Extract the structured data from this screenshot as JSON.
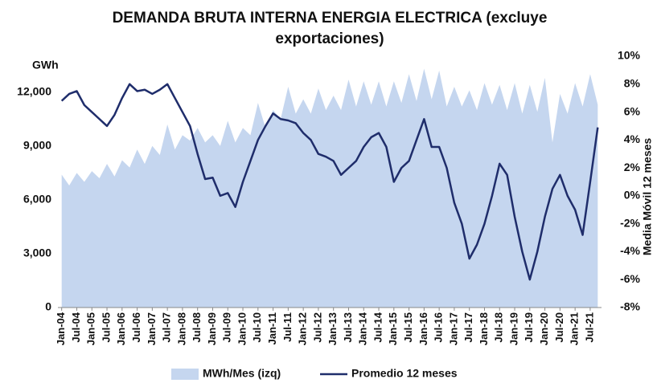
{
  "chart_data": {
    "type": "area_line",
    "title": "DEMANDA BRUTA INTERNA ENERGIA ELECTRICA (excluye exportaciones)",
    "ylabel": "GWh",
    "y2label": "Media Móvil 12 meses",
    "categories": [
      "Jan-04",
      null,
      "Jul-04",
      null,
      "Jan-05",
      null,
      "Jul-05",
      null,
      "Jan-06",
      null,
      "Jul-06",
      null,
      "Jan-07",
      null,
      "Jul-07",
      null,
      "Jan-08",
      null,
      "Jul-08",
      null,
      "Jan-09",
      null,
      "Jul-09",
      null,
      "Jan-10",
      null,
      "Jul-10",
      null,
      "Jan-11",
      null,
      "Jul-11",
      null,
      "Jan-12",
      null,
      "Jul-12",
      null,
      "Jan-13",
      null,
      "Jul-13",
      null,
      "Jan-14",
      null,
      "Jul-14",
      null,
      "Jan-15",
      null,
      "Jul-15",
      null,
      "Jan-16",
      null,
      "Jul-16",
      null,
      "Jan-17",
      null,
      "Jul-17",
      null,
      "Jan-18",
      null,
      "Jul-18",
      null,
      "Jan-19",
      null,
      "Jul-19",
      null,
      "Jan-20",
      null,
      "Jul-20",
      null,
      "Jan-21",
      null,
      "Jul-21",
      null
    ],
    "series": [
      {
        "name": "MWh/Mes (izq)",
        "color": "#c5d6ef",
        "values": [
          7400,
          6800,
          7500,
          7000,
          7600,
          7200,
          8000,
          7300,
          8200,
          7800,
          8800,
          8000,
          9000,
          8500,
          10200,
          8800,
          9600,
          9300,
          10000,
          9200,
          9600,
          9000,
          10400,
          9200,
          10000,
          9600,
          11400,
          10000,
          11000,
          10500,
          12300,
          10800,
          11600,
          10800,
          12200,
          11000,
          11800,
          11000,
          12700,
          11200,
          12600,
          11300,
          12600,
          11200,
          12600,
          11400,
          13000,
          11500,
          13300,
          11600,
          13200,
          11200,
          12300,
          11200,
          12100,
          11000,
          12500,
          11300,
          12400,
          11000,
          12500,
          10800,
          12400,
          10900,
          12800,
          9200,
          11900,
          10800,
          12500,
          11200,
          13000,
          11300
        ]
      },
      {
        "name": "Promedio 12 meses",
        "color": "#1f2d6b",
        "axis": "y2",
        "values": [
          6.8,
          7.3,
          7.5,
          6.5,
          6.0,
          5.5,
          5.0,
          5.8,
          7.0,
          8.0,
          7.5,
          7.6,
          7.3,
          7.6,
          8.0,
          7.0,
          6.0,
          5.0,
          3.0,
          1.2,
          1.3,
          0.0,
          0.2,
          -0.8,
          1.0,
          2.5,
          4.0,
          5.0,
          5.9,
          5.5,
          5.4,
          5.2,
          4.5,
          4.0,
          3.0,
          2.8,
          2.5,
          1.5,
          2.0,
          2.5,
          3.5,
          4.2,
          4.5,
          3.5,
          1.0,
          2.0,
          2.5,
          4.0,
          5.5,
          3.5,
          3.5,
          2.0,
          -0.5,
          -2.0,
          -4.5,
          -3.5,
          -2.0,
          0.0,
          2.3,
          1.5,
          -1.5,
          -4.0,
          -6.0,
          -4.0,
          -1.5,
          0.5,
          1.5,
          0.0,
          -1.0,
          -2.8,
          1.0,
          4.9
        ]
      }
    ],
    "ylim": [
      0,
      14000
    ],
    "yticks": [
      0,
      {
        "value": 3000,
        "label": "3,000"
      },
      {
        "value": 6000,
        "label": "6,000"
      },
      {
        "value": 9000,
        "label": "9,000"
      },
      {
        "value": 12000,
        "label": "12,000"
      }
    ],
    "y2lim": [
      -8,
      10
    ],
    "y2ticks": [
      {
        "value": -8,
        "label": "-8%"
      },
      {
        "value": -6,
        "label": "-6%"
      },
      {
        "value": -4,
        "label": "-4%"
      },
      {
        "value": -2,
        "label": "-2%"
      },
      {
        "value": 0,
        "label": "0%"
      },
      {
        "value": 2,
        "label": "2%"
      },
      {
        "value": 4,
        "label": "4%"
      },
      {
        "value": 6,
        "label": "6%"
      },
      {
        "value": 8,
        "label": "8%"
      },
      {
        "value": 10,
        "label": "10%"
      }
    ]
  }
}
